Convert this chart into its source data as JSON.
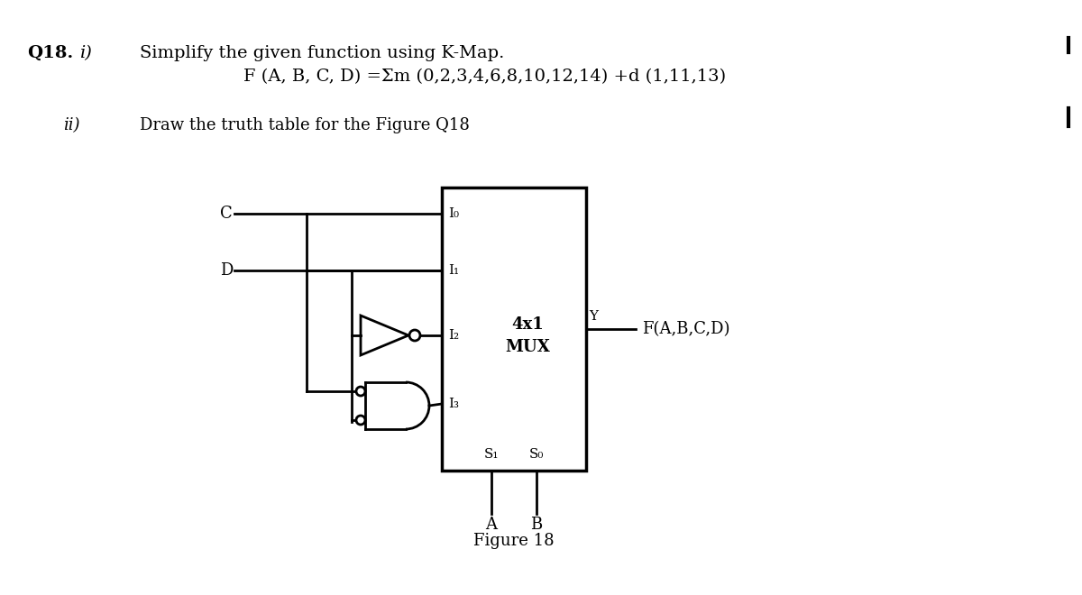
{
  "bg_color": "#ffffff",
  "text_color": "#000000",
  "title_bold": "Q18.",
  "title_i": "  i)",
  "line1": "Simplify the given function using K-Map.",
  "line2": "F (A, B, C, D) =Σm (0,2,3,4,6,8,10,12,14) +d (1,11,13)",
  "part_ii": "ii)",
  "line3": "Draw the truth table for the Figure Q18",
  "figure_label": "Figure 18",
  "mux_label_top": "4x1",
  "mux_label_bot": "MUX",
  "output_label": "F(A,B,C,D)",
  "input_C": "C",
  "input_D": "D",
  "input_A": "A",
  "input_B": "B",
  "sel_S1": "S₁",
  "sel_S0": "S₀",
  "mux_inputs": [
    "I₀",
    "I₁",
    "I₂",
    "I₃"
  ],
  "mux_output": "Y"
}
